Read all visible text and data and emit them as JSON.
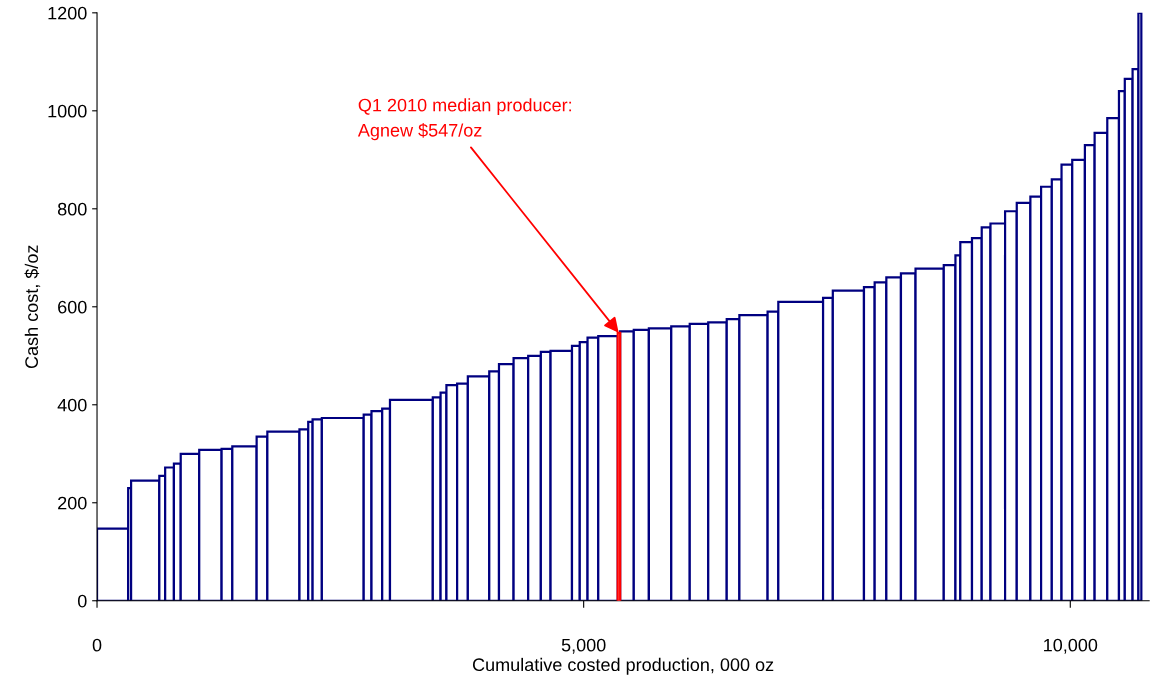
{
  "chart_data": {
    "type": "histogram",
    "xlabel": "Cumulative costed production, 000 oz",
    "ylabel": "Cash cost, $/oz",
    "bins": [
      0,
      320,
      350,
      640,
      700,
      790,
      860,
      1050,
      1280,
      1390,
      1640,
      1750,
      2080,
      2170,
      2215,
      2310,
      2740,
      2820,
      2930,
      3010,
      3450,
      3530,
      3590,
      3700,
      3810,
      4030,
      4130,
      4280,
      4430,
      4560,
      4660,
      4880,
      4960,
      5040,
      5150,
      5350,
      5375,
      5515,
      5670,
      5900,
      6090,
      6280,
      6470,
      6600,
      6890,
      7000,
      7460,
      7560,
      7880,
      7990,
      8110,
      8260,
      8410,
      8700,
      8820,
      8870,
      8990,
      9090,
      9180,
      9330,
      9450,
      9590,
      9700,
      9810,
      9910,
      10020,
      10150,
      10250,
      10380,
      10500,
      10560,
      10640,
      10700,
      10730
    ],
    "values": [
      147,
      230,
      245,
      255,
      272,
      280,
      300,
      308,
      310,
      315,
      335,
      345,
      350,
      365,
      370,
      373,
      380,
      387,
      392,
      410,
      415,
      425,
      440,
      443,
      458,
      468,
      483,
      495,
      500,
      508,
      510,
      520,
      528,
      537,
      540,
      547,
      550,
      553,
      556,
      560,
      565,
      568,
      575,
      583,
      590,
      610,
      618,
      633,
      640,
      650,
      660,
      668,
      678,
      685,
      705,
      732,
      740,
      762,
      770,
      795,
      812,
      825,
      845,
      860,
      890,
      900,
      930,
      955,
      985,
      1040,
      1065,
      1085,
      1200
    ],
    "colors": [
      "#000080",
      "#000080",
      "#000080",
      "#000080",
      "#000080",
      "#000080",
      "#000080",
      "#000080",
      "#000080",
      "#000080",
      "#000080",
      "#000080",
      "#000080",
      "#000080",
      "#000080",
      "#000080",
      "#000080",
      "#000080",
      "#000080",
      "#000080",
      "#000080",
      "#000080",
      "#000080",
      "#000080",
      "#000080",
      "#000080",
      "#000080",
      "#000080",
      "#000080",
      "#000080",
      "#000080",
      "#000080",
      "#000080",
      "#000080",
      "#000080",
      "#ff0000",
      "#000080",
      "#000080",
      "#000080",
      "#000080",
      "#000080",
      "#000080",
      "#000080",
      "#000080",
      "#000080",
      "#000080",
      "#000080",
      "#000080",
      "#000080",
      "#000080",
      "#000080",
      "#000080",
      "#000080",
      "#000080",
      "#000080",
      "#000080",
      "#000080",
      "#000080",
      "#000080",
      "#000080",
      "#000080",
      "#000080",
      "#000080",
      "#000080",
      "#000080",
      "#000080",
      "#000080",
      "#000080",
      "#000080",
      "#000080",
      "#000080",
      "#000080",
      "#000080"
    ],
    "xlim": [
      0,
      10810
    ],
    "xticks": [
      0,
      {
        "value": 5000,
        "label": "5,000"
      },
      {
        "value": 10000,
        "label": "10,000"
      }
    ],
    "ylim": [
      0,
      1200
    ],
    "yticks": [
      0,
      200,
      400,
      600,
      800,
      1000,
      1200
    ],
    "grid": false,
    "annotations": [
      {
        "text": "Q1 2010 median producer:\nAgnew $547/oz",
        "x": 5360,
        "y": 547
      }
    ]
  }
}
